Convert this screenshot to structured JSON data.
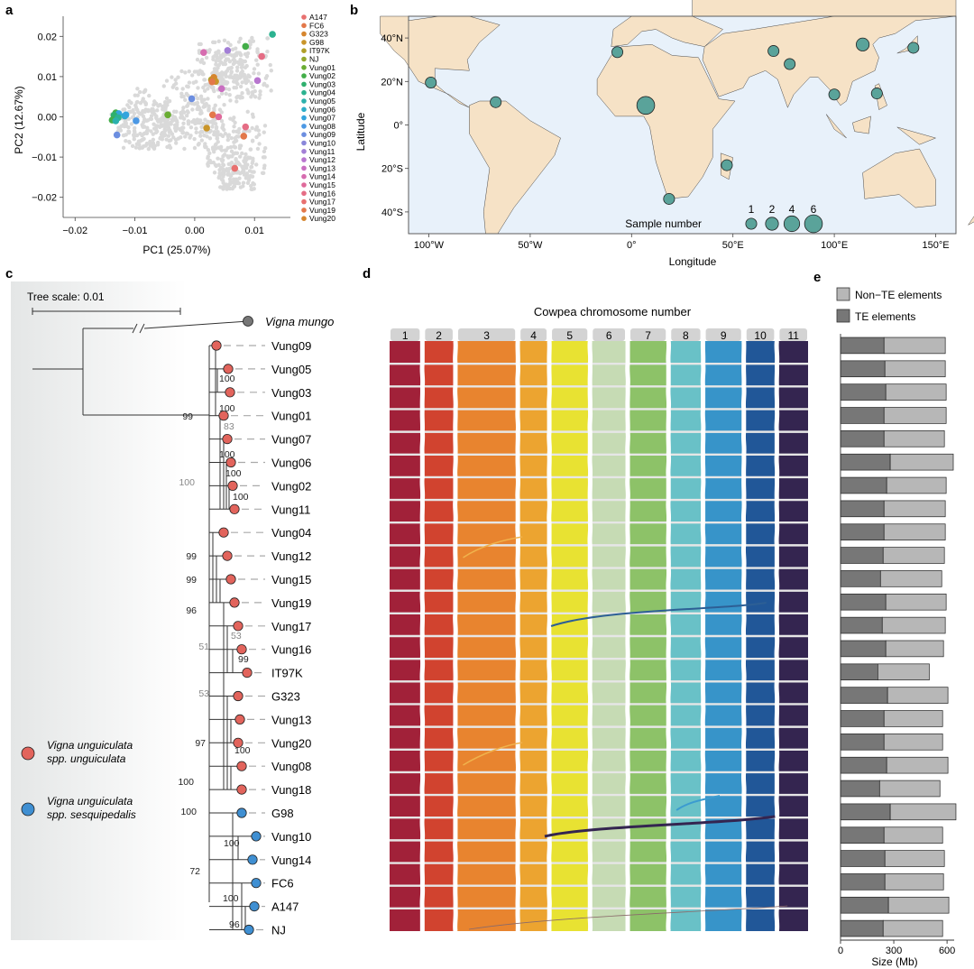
{
  "panels": {
    "a": "a",
    "b": "b",
    "c": "c",
    "d": "d",
    "e": "e"
  },
  "colors": {
    "bg_points": "#d9d9d9",
    "land": "#f6e2c6",
    "ocean": "#e8f1fa",
    "site": "#5aa39a",
    "unguiculata": "#e2645c",
    "sesquipedalis": "#3f8fd2",
    "outgroup": "#777777",
    "te": "#777777",
    "nonte": "#b7b7b7",
    "sample_colors": [
      "#e8706f",
      "#e3784a",
      "#d6862e",
      "#c9952a",
      "#b19f28",
      "#93a82c",
      "#6aad33",
      "#43ae49",
      "#2fb06e",
      "#2cb290",
      "#2cb1ad",
      "#2eadc8",
      "#34a4dd",
      "#4c98e4",
      "#6c8ee0",
      "#8a87da",
      "#a37fd6",
      "#b876cf",
      "#c96fc1",
      "#d66caf",
      "#df6a9b",
      "#e56d85"
    ],
    "chrom_colors": [
      "#a12139",
      "#d1432f",
      "#e8842f",
      "#eca430",
      "#e8e232",
      "#c6dbb4",
      "#8dc268",
      "#69c1c7",
      "#3794c9",
      "#215798",
      "#342550"
    ]
  },
  "chart_data": [
    {
      "panel": "a",
      "type": "scatter",
      "xlabel": "PC1 (25.07%)",
      "ylabel": "PC2 (12.67%)",
      "xlim": [
        -0.022,
        0.016
      ],
      "ylim": [
        -0.025,
        0.025
      ],
      "xticks": [
        -0.02,
        -0.01,
        0.0,
        0.01
      ],
      "yticks": [
        -0.02,
        -0.01,
        0.0,
        0.01,
        0.02
      ],
      "xtick_labels": [
        "−0.02",
        "−0.01",
        "0.00",
        "0.01"
      ],
      "ytick_labels": [
        "−0.02",
        "−0.01",
        "0.00",
        "0.01",
        "0.02"
      ],
      "legend": [
        "A147",
        "FC6",
        "G323",
        "G98",
        "IT97K",
        "NJ",
        "Vung01",
        "Vung02",
        "Vung03",
        "Vung04",
        "Vung05",
        "Vung06",
        "Vung07",
        "Vung08",
        "Vung09",
        "Vung10",
        "Vung11",
        "Vung12",
        "Vung13",
        "Vung14",
        "Vung15",
        "Vung16",
        "Vung17",
        "Vung19",
        "Vung20"
      ],
      "legend_placement": "right",
      "points": [
        {
          "x": 0.013,
          "y": 0.0205,
          "s": 9
        },
        {
          "x": 0.0112,
          "y": 0.015,
          "s": 21
        },
        {
          "x": 0.0085,
          "y": 0.0175,
          "s": 7
        },
        {
          "x": 0.0055,
          "y": 0.0165,
          "s": 16
        },
        {
          "x": 0.0015,
          "y": 0.016,
          "s": 19
        },
        {
          "x": 0.0028,
          "y": 0.0092,
          "s": 4
        },
        {
          "x": 0.0032,
          "y": 0.0098,
          "s": 2
        },
        {
          "x": 0.0035,
          "y": 0.0088,
          "s": 3
        },
        {
          "x": 0.0029,
          "y": 0.0087,
          "s": 1
        },
        {
          "x": 0.0105,
          "y": 0.009,
          "s": 17
        },
        {
          "x": 0.0045,
          "y": 0.007,
          "s": 18
        },
        {
          "x": -0.0005,
          "y": 0.0045,
          "s": 14
        },
        {
          "x": -0.0045,
          "y": 0.0005,
          "s": 6
        },
        {
          "x": -0.0132,
          "y": 0.001,
          "s": 7
        },
        {
          "x": -0.0127,
          "y": 0.0008,
          "s": 12
        },
        {
          "x": -0.0135,
          "y": 0.0004,
          "s": 8
        },
        {
          "x": -0.0128,
          "y": -0.0002,
          "s": 9
        },
        {
          "x": -0.0138,
          "y": -0.0008,
          "s": 7
        },
        {
          "x": -0.0132,
          "y": -0.001,
          "s": 10
        },
        {
          "x": -0.0117,
          "y": 0.0002,
          "s": 11
        },
        {
          "x": -0.0115,
          "y": 0.0005,
          "s": 12
        },
        {
          "x": -0.0098,
          "y": -0.001,
          "s": 13
        },
        {
          "x": -0.013,
          "y": -0.0045,
          "s": 14
        },
        {
          "x": 0.003,
          "y": 0.0005,
          "s": 1
        },
        {
          "x": 0.004,
          "y": 0.0,
          "s": 20
        },
        {
          "x": 0.002,
          "y": -0.0028,
          "s": 3
        },
        {
          "x": 0.0085,
          "y": -0.0025,
          "s": 21
        },
        {
          "x": 0.0082,
          "y": -0.0048,
          "s": 23
        },
        {
          "x": 0.0067,
          "y": -0.0128,
          "s": 22
        }
      ]
    },
    {
      "panel": "b",
      "type": "map",
      "xlabel": "Longitude",
      "ylabel": "Latitude",
      "xlim": [
        -110,
        160
      ],
      "ylim": [
        -50,
        50
      ],
      "xticks": [
        -100,
        -50,
        0,
        50,
        100,
        150
      ],
      "yticks": [
        -40,
        -20,
        0,
        20,
        40
      ],
      "xtick_labels": [
        "100°W",
        "50°W",
        "0°",
        "50°E",
        "100°E",
        "150°E"
      ],
      "ytick_labels": [
        "40°S",
        "20°S",
        "0°",
        "20°N",
        "40°N"
      ],
      "sites": [
        {
          "lon": -99,
          "lat": 19.5,
          "n": 1
        },
        {
          "lon": -67,
          "lat": 10.5,
          "n": 1
        },
        {
          "lon": -7,
          "lat": 33.5,
          "n": 1
        },
        {
          "lon": 7,
          "lat": 9,
          "n": 6
        },
        {
          "lon": 18.5,
          "lat": -34,
          "n": 1
        },
        {
          "lon": 47,
          "lat": -18.5,
          "n": 1
        },
        {
          "lon": 70,
          "lat": 34,
          "n": 1
        },
        {
          "lon": 78,
          "lat": 28,
          "n": 1
        },
        {
          "lon": 100,
          "lat": 14,
          "n": 1
        },
        {
          "lon": 114,
          "lat": 37,
          "n": 2
        },
        {
          "lon": 121,
          "lat": 14.5,
          "n": 1
        },
        {
          "lon": 139,
          "lat": 35.5,
          "n": 1
        }
      ],
      "size_legend_title": "Sample number",
      "size_legend": [
        1,
        2,
        4,
        6
      ],
      "size_legend_labels": [
        "1",
        "2",
        "4",
        "6"
      ]
    },
    {
      "panel": "c",
      "type": "tree",
      "scale_label": "Tree scale: 0.01",
      "outgroup": "Vigna mungo",
      "tips": [
        {
          "label": "Vung09",
          "group": "unguiculata"
        },
        {
          "label": "Vung05",
          "group": "unguiculata"
        },
        {
          "label": "Vung03",
          "group": "unguiculata"
        },
        {
          "label": "Vung01",
          "group": "unguiculata"
        },
        {
          "label": "Vung07",
          "group": "unguiculata"
        },
        {
          "label": "Vung06",
          "group": "unguiculata"
        },
        {
          "label": "Vung02",
          "group": "unguiculata"
        },
        {
          "label": "Vung11",
          "group": "unguiculata"
        },
        {
          "label": "Vung04",
          "group": "unguiculata"
        },
        {
          "label": "Vung12",
          "group": "unguiculata"
        },
        {
          "label": "Vung15",
          "group": "unguiculata"
        },
        {
          "label": "Vung19",
          "group": "unguiculata"
        },
        {
          "label": "Vung17",
          "group": "unguiculata"
        },
        {
          "label": "Vung16",
          "group": "unguiculata"
        },
        {
          "label": "IT97K",
          "group": "unguiculata"
        },
        {
          "label": "G323",
          "group": "unguiculata"
        },
        {
          "label": "Vung13",
          "group": "unguiculata"
        },
        {
          "label": "Vung20",
          "group": "unguiculata"
        },
        {
          "label": "Vung08",
          "group": "unguiculata"
        },
        {
          "label": "Vung18",
          "group": "unguiculata"
        },
        {
          "label": "G98",
          "group": "sesquipedalis"
        },
        {
          "label": "Vung10",
          "group": "sesquipedalis"
        },
        {
          "label": "Vung14",
          "group": "sesquipedalis"
        },
        {
          "label": "FC6",
          "group": "sesquipedalis"
        },
        {
          "label": "A147",
          "group": "sesquipedalis"
        },
        {
          "label": "NJ",
          "group": "sesquipedalis"
        }
      ],
      "bootstrap": [
        "100",
        "100",
        "83",
        "100",
        "100",
        "99",
        "100",
        "99",
        "99",
        "96",
        "53",
        "99",
        "51",
        "53",
        "100",
        "97",
        "100",
        "100",
        "100",
        "100",
        "72",
        "100",
        "96"
      ],
      "legend": [
        {
          "line1": "Vigna unguiculata",
          "line2": "spp. unguiculata",
          "group": "unguiculata"
        },
        {
          "line1": "Vigna unguiculata",
          "line2": "spp. sesquipedalis",
          "group": "sesquipedalis"
        }
      ]
    },
    {
      "panel": "d",
      "type": "synteny",
      "title": "Cowpea chromosome number",
      "chromosomes": [
        "1",
        "2",
        "3",
        "4",
        "5",
        "6",
        "7",
        "8",
        "9",
        "10",
        "11"
      ],
      "relative_lengths": [
        1.0,
        0.95,
        1.9,
        0.9,
        1.2,
        1.1,
        1.2,
        1.0,
        1.2,
        0.95,
        0.95
      ],
      "genomes": 26
    },
    {
      "panel": "e",
      "type": "bar",
      "stacked": true,
      "orientation": "horizontal",
      "xlabel": "Size (Mb)",
      "xlim": [
        0,
        640
      ],
      "xticks": [
        0,
        300,
        600
      ],
      "xtick_labels": [
        "0",
        "300",
        "600"
      ],
      "series": [
        {
          "name": "TE elements",
          "values": [
            245,
            250,
            255,
            245,
            245,
            280,
            260,
            245,
            245,
            240,
            225,
            255,
            235,
            255,
            210,
            265,
            245,
            245,
            260,
            220,
            280,
            245,
            250,
            250,
            270,
            240
          ]
        },
        {
          "name": "Non−TE elements",
          "values": [
            345,
            340,
            340,
            350,
            340,
            355,
            335,
            345,
            345,
            345,
            345,
            340,
            355,
            325,
            290,
            340,
            330,
            330,
            345,
            340,
            370,
            330,
            335,
            330,
            340,
            335
          ]
        }
      ]
    }
  ]
}
